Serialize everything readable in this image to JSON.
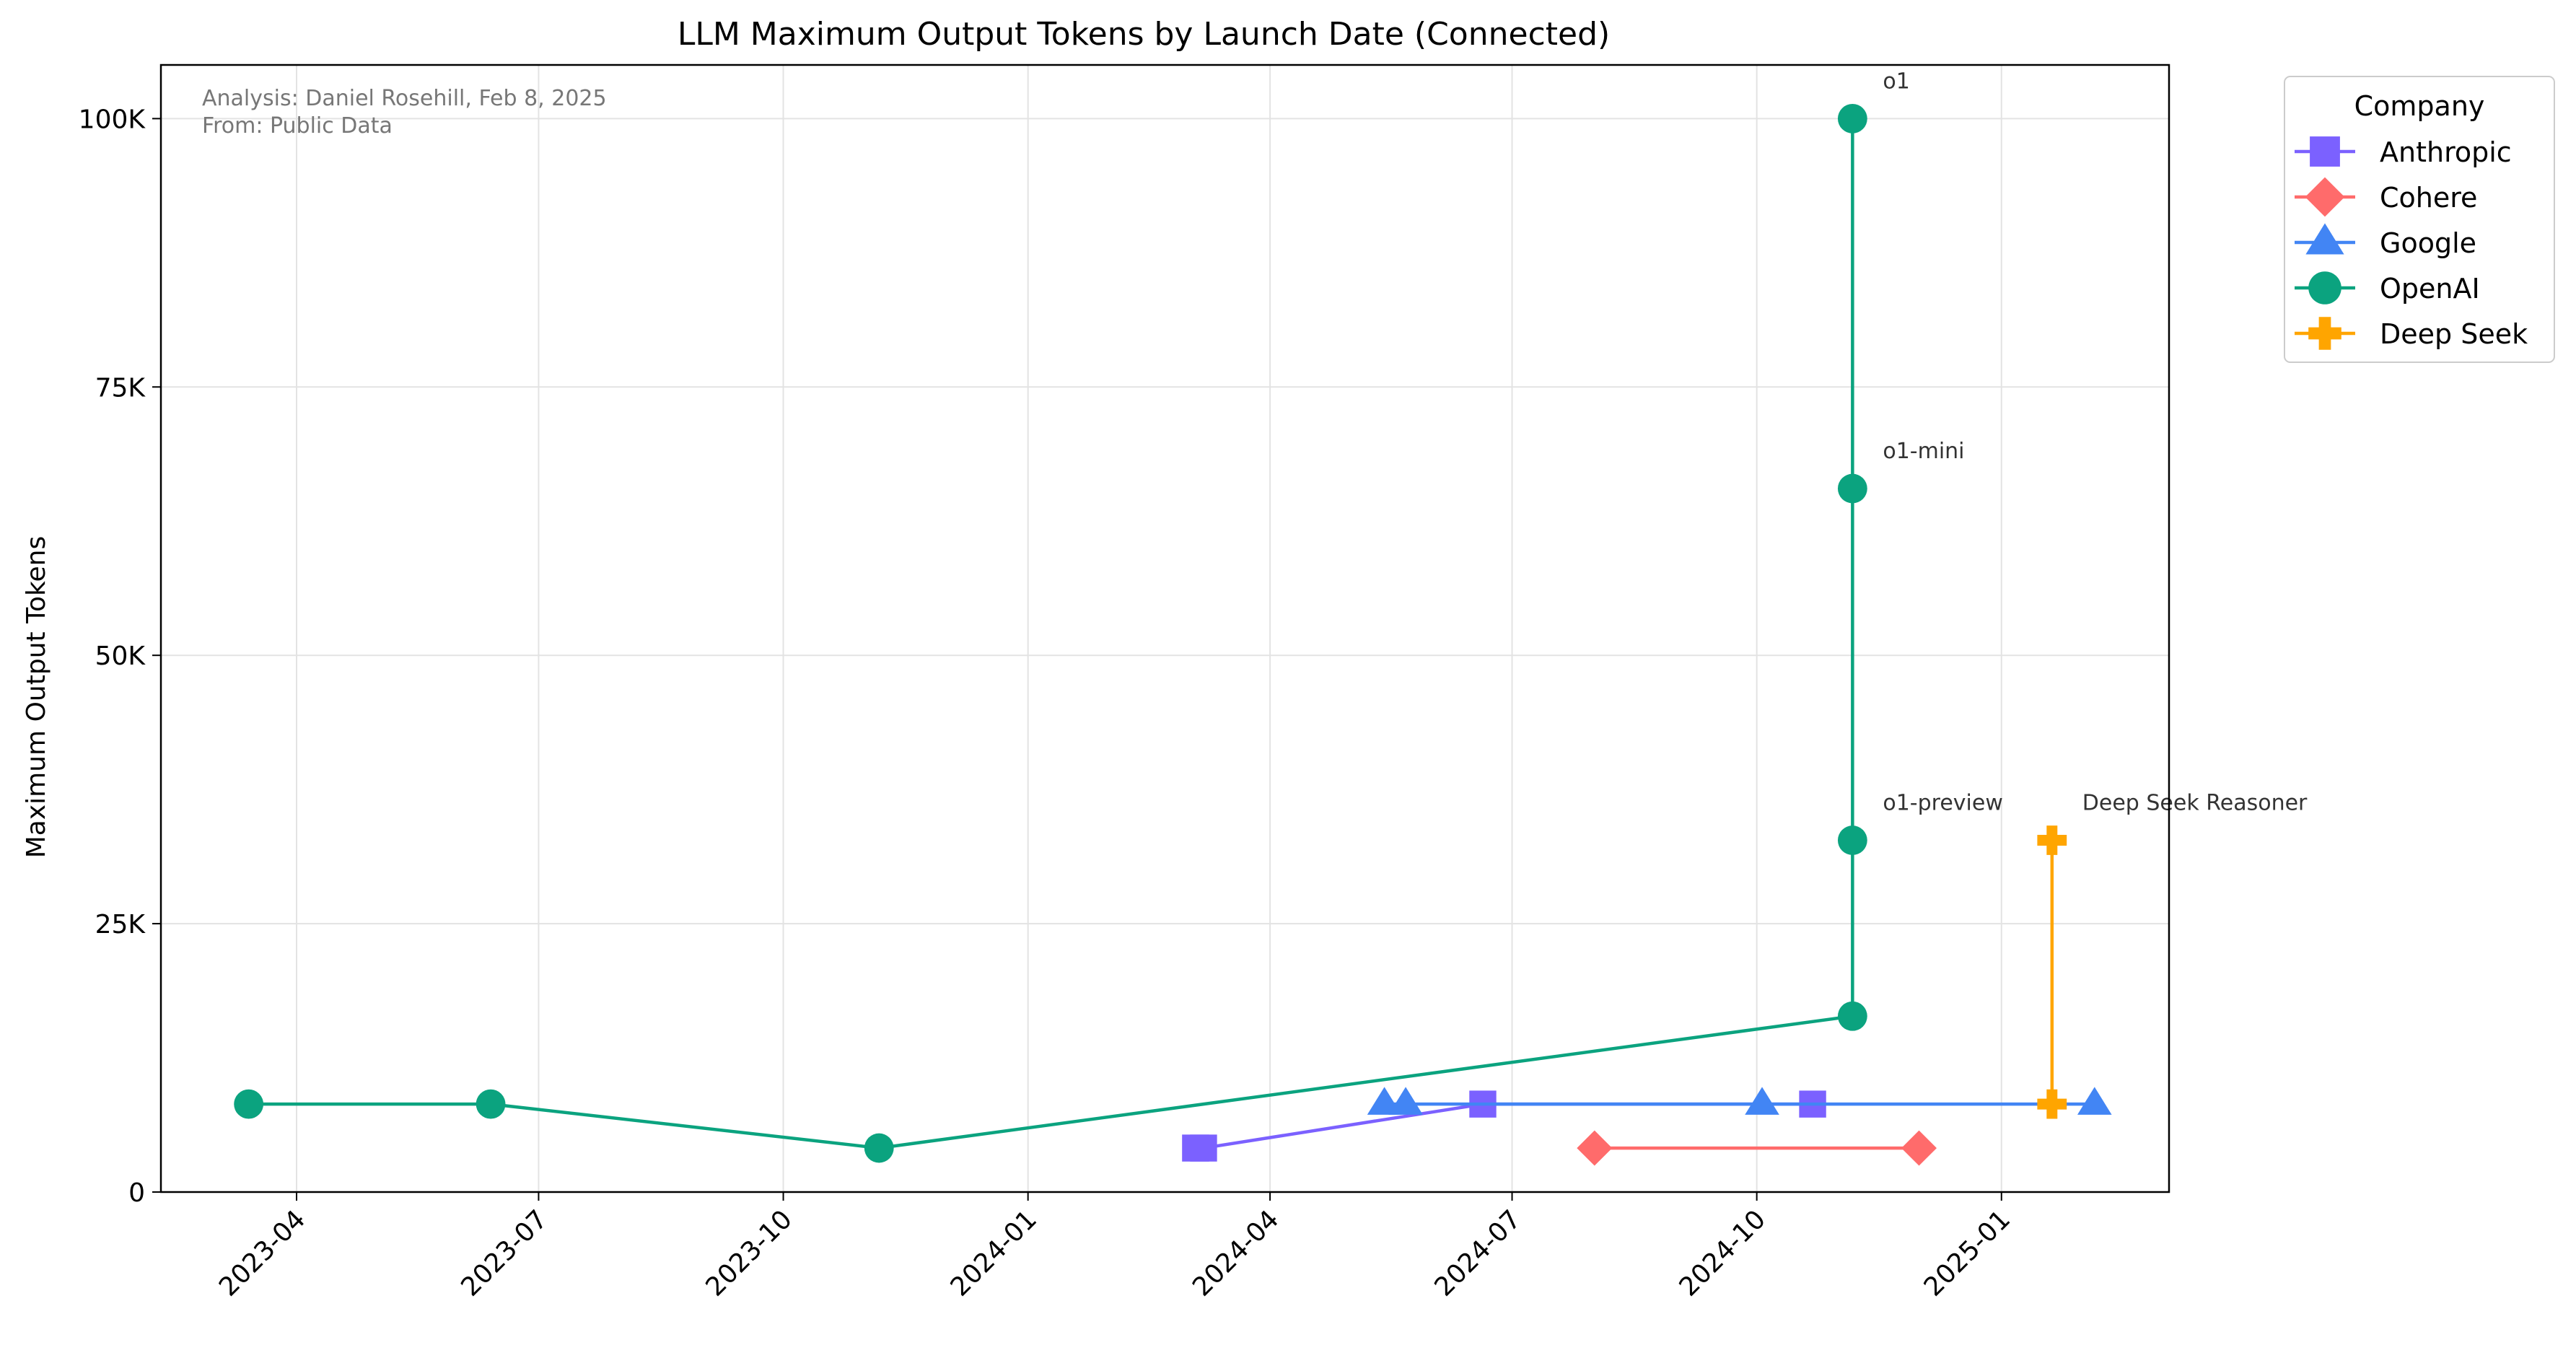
{
  "chart_data": {
    "type": "line",
    "title": "LLM Maximum Output Tokens by Launch Date (Connected)",
    "xlabel": "",
    "ylabel": "Maximum Output Tokens",
    "x_type": "date",
    "xlim": [
      "2023-02-09",
      "2025-03-05"
    ],
    "ylim": [
      0,
      105000
    ],
    "x_ticks": [
      "2023-04-01",
      "2023-07-01",
      "2023-10-01",
      "2024-01-01",
      "2024-04-01",
      "2024-07-01",
      "2024-10-01",
      "2025-01-01"
    ],
    "x_tick_labels": [
      "2023-04",
      "2023-07",
      "2023-10",
      "2024-01",
      "2024-04",
      "2024-07",
      "2024-10",
      "2025-01"
    ],
    "y_ticks": [
      0,
      25000,
      50000,
      75000,
      100000
    ],
    "y_tick_labels": [
      "0",
      "25K",
      "50K",
      "75K",
      "100K"
    ],
    "grid": true,
    "legend_title": "Company",
    "legend_position": "outside-top-right",
    "series": [
      {
        "name": "Anthropic",
        "color": "#7b61ff",
        "marker": "square",
        "points": [
          {
            "x": "2024-03-04",
            "y": 4096
          },
          {
            "x": "2024-03-07",
            "y": 4096
          },
          {
            "x": "2024-06-20",
            "y": 8192
          },
          {
            "x": "2024-10-22",
            "y": 8192
          }
        ]
      },
      {
        "name": "Cohere",
        "color": "#ff6b6b",
        "marker": "diamond",
        "points": [
          {
            "x": "2024-08-01",
            "y": 4096
          },
          {
            "x": "2024-12-01",
            "y": 4096
          }
        ]
      },
      {
        "name": "Google",
        "color": "#4285f4",
        "marker": "triangle",
        "points": [
          {
            "x": "2024-05-14",
            "y": 8192
          },
          {
            "x": "2024-05-22",
            "y": 8192
          },
          {
            "x": "2024-10-03",
            "y": 8192
          },
          {
            "x": "2025-02-05",
            "y": 8192
          }
        ]
      },
      {
        "name": "OpenAI",
        "color": "#0ba37f",
        "marker": "circle",
        "points": [
          {
            "x": "2023-03-14",
            "y": 8192
          },
          {
            "x": "2023-06-13",
            "y": 8192
          },
          {
            "x": "2023-11-06",
            "y": 4096
          },
          {
            "x": "2024-11-06",
            "y": 16384
          },
          {
            "x": "2024-11-06",
            "y": 32768
          },
          {
            "x": "2024-11-06",
            "y": 65536
          },
          {
            "x": "2024-11-06",
            "y": 100000
          }
        ]
      },
      {
        "name": "Deep Seek",
        "color": "#ffa500",
        "marker": "plus",
        "points": [
          {
            "x": "2025-01-20",
            "y": 8192
          },
          {
            "x": "2025-01-20",
            "y": 32768
          }
        ]
      }
    ],
    "annotations": [
      {
        "text": "o1",
        "x": "2024-11-06",
        "y": 100000
      },
      {
        "text": "o1-mini",
        "x": "2024-11-06",
        "y": 65536
      },
      {
        "text": "o1-preview",
        "x": "2024-11-06",
        "y": 32768
      },
      {
        "text": "Deep Seek Reasoner",
        "x": "2025-01-20",
        "y": 32768
      }
    ],
    "corner_notes": [
      "Analysis: Daniel Rosehill, Feb 8, 2025",
      "From: Public Data"
    ]
  }
}
